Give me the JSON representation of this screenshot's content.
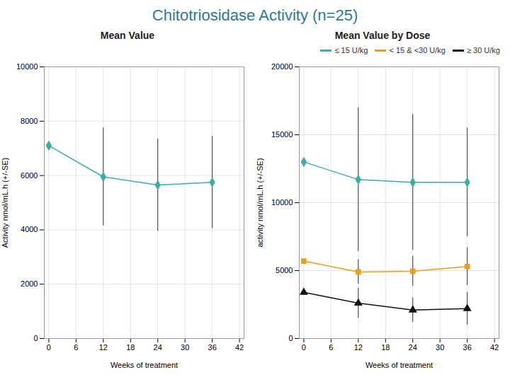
{
  "title": "Chitotriosidase Activity (n=25)",
  "chart_data": [
    {
      "type": "line",
      "title": "Mean Value",
      "x": [
        0,
        12,
        24,
        36
      ],
      "values": [
        7100,
        5950,
        5650,
        5750
      ],
      "error_plus": [
        0,
        1800,
        1700,
        1700
      ],
      "error_minus": [
        0,
        1800,
        1700,
        1700
      ],
      "color": "#3CAEA3",
      "marker": "diamond",
      "xlabel": "Weeks of treatment",
      "ylabel": "Activity nmol/mL.h (+/-SE)",
      "xlim": [
        -1,
        43
      ],
      "xticks": [
        0,
        6,
        12,
        18,
        24,
        30,
        36,
        42
      ],
      "ylim": [
        0,
        10000
      ],
      "yticks": [
        0,
        2000,
        4000,
        6000,
        8000,
        10000
      ],
      "grid": true
    },
    {
      "type": "line",
      "title": "Mean Value by Dose",
      "x": [
        0,
        12,
        24,
        36
      ],
      "series": [
        {
          "name": "≤ 15 U/kg",
          "color": "#3CAEA3",
          "marker": "diamond",
          "values": [
            13000,
            11700,
            11500,
            11500
          ],
          "error_plus": [
            0,
            5300,
            5000,
            4000
          ],
          "error_minus": [
            0,
            5300,
            5000,
            4000
          ]
        },
        {
          "name": "< 15 & <30 U/kg",
          "color": "#E8A020",
          "marker": "square",
          "values": [
            5700,
            4900,
            4950,
            5300
          ],
          "error_plus": [
            0,
            900,
            1100,
            1400
          ],
          "error_minus": [
            0,
            900,
            1100,
            1400
          ]
        },
        {
          "name": "≥ 30 U/kg",
          "color": "#111111",
          "marker": "triangle",
          "values": [
            3400,
            2600,
            2100,
            2200
          ],
          "error_plus": [
            0,
            1100,
            900,
            1200
          ],
          "error_minus": [
            0,
            1100,
            900,
            1200
          ]
        }
      ],
      "xlabel": "Weeks of treatment",
      "ylabel": "activity nmol/mL.h (+/-SE)",
      "xlim": [
        -1,
        43
      ],
      "xticks": [
        0,
        6,
        12,
        18,
        24,
        30,
        36,
        42
      ],
      "ylim": [
        0,
        20000
      ],
      "yticks": [
        0,
        5000,
        10000,
        15000,
        20000
      ],
      "grid": true,
      "legend": "upper right"
    }
  ]
}
